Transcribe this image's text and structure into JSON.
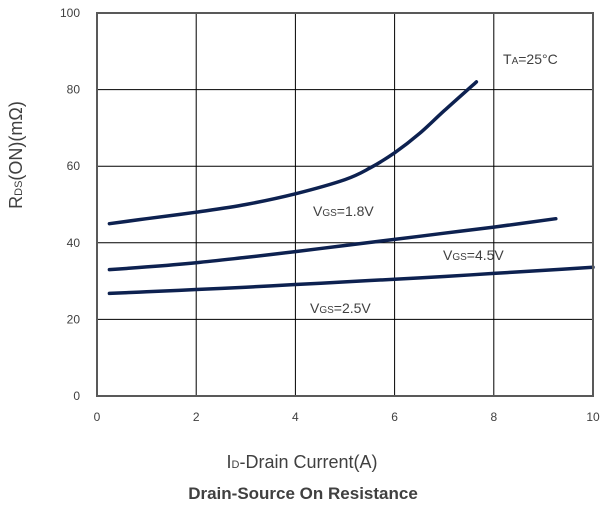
{
  "chart_data": {
    "type": "line",
    "title": "Drain-Source On Resistance",
    "xlabel": {
      "main": "I",
      "sub": "D",
      "rest": "-Drain Current(A)"
    },
    "ylabel": {
      "main": "R",
      "sub": "DS",
      "rest": "(ON)(mΩ)"
    },
    "xlim": [
      0,
      10
    ],
    "ylim": [
      0,
      100
    ],
    "xticks": [
      "0",
      "2",
      "4",
      "6",
      "8",
      "10"
    ],
    "yticks": [
      "0",
      "20",
      "40",
      "60",
      "80",
      "100"
    ],
    "grid": true,
    "annotation": {
      "main": "T",
      "sub": "A",
      "rest": "=25°C"
    },
    "colors": {
      "line": "#0d2150",
      "grid": "#000000",
      "frame": "#595959"
    },
    "series": [
      {
        "label": {
          "main": "V",
          "sub": "GS",
          "rest": "=1.8V"
        },
        "x": [
          0.25,
          1,
          2,
          3,
          4,
          5,
          5.5,
          6,
          6.5,
          7,
          7.65
        ],
        "y": [
          45,
          46.3,
          48,
          50,
          52.8,
          56.5,
          59.5,
          63.5,
          68.5,
          74.5,
          82
        ]
      },
      {
        "label": {
          "main": "V",
          "sub": "GS",
          "rest": "=4.5V"
        },
        "x": [
          0.25,
          1,
          2,
          3,
          4,
          5,
          6,
          7,
          8,
          9.25
        ],
        "y": [
          33,
          33.7,
          34.8,
          36.2,
          37.7,
          39.3,
          40.9,
          42.5,
          44.1,
          46.3
        ]
      },
      {
        "label": {
          "main": "V",
          "sub": "GS",
          "rest": "=2.5V"
        },
        "x": [
          0.25,
          1,
          2,
          3,
          4,
          5,
          6,
          7,
          8,
          9,
          10
        ],
        "y": [
          26.8,
          27.2,
          27.8,
          28.4,
          29.1,
          29.8,
          30.5,
          31.2,
          32,
          32.8,
          33.6
        ]
      }
    ]
  }
}
